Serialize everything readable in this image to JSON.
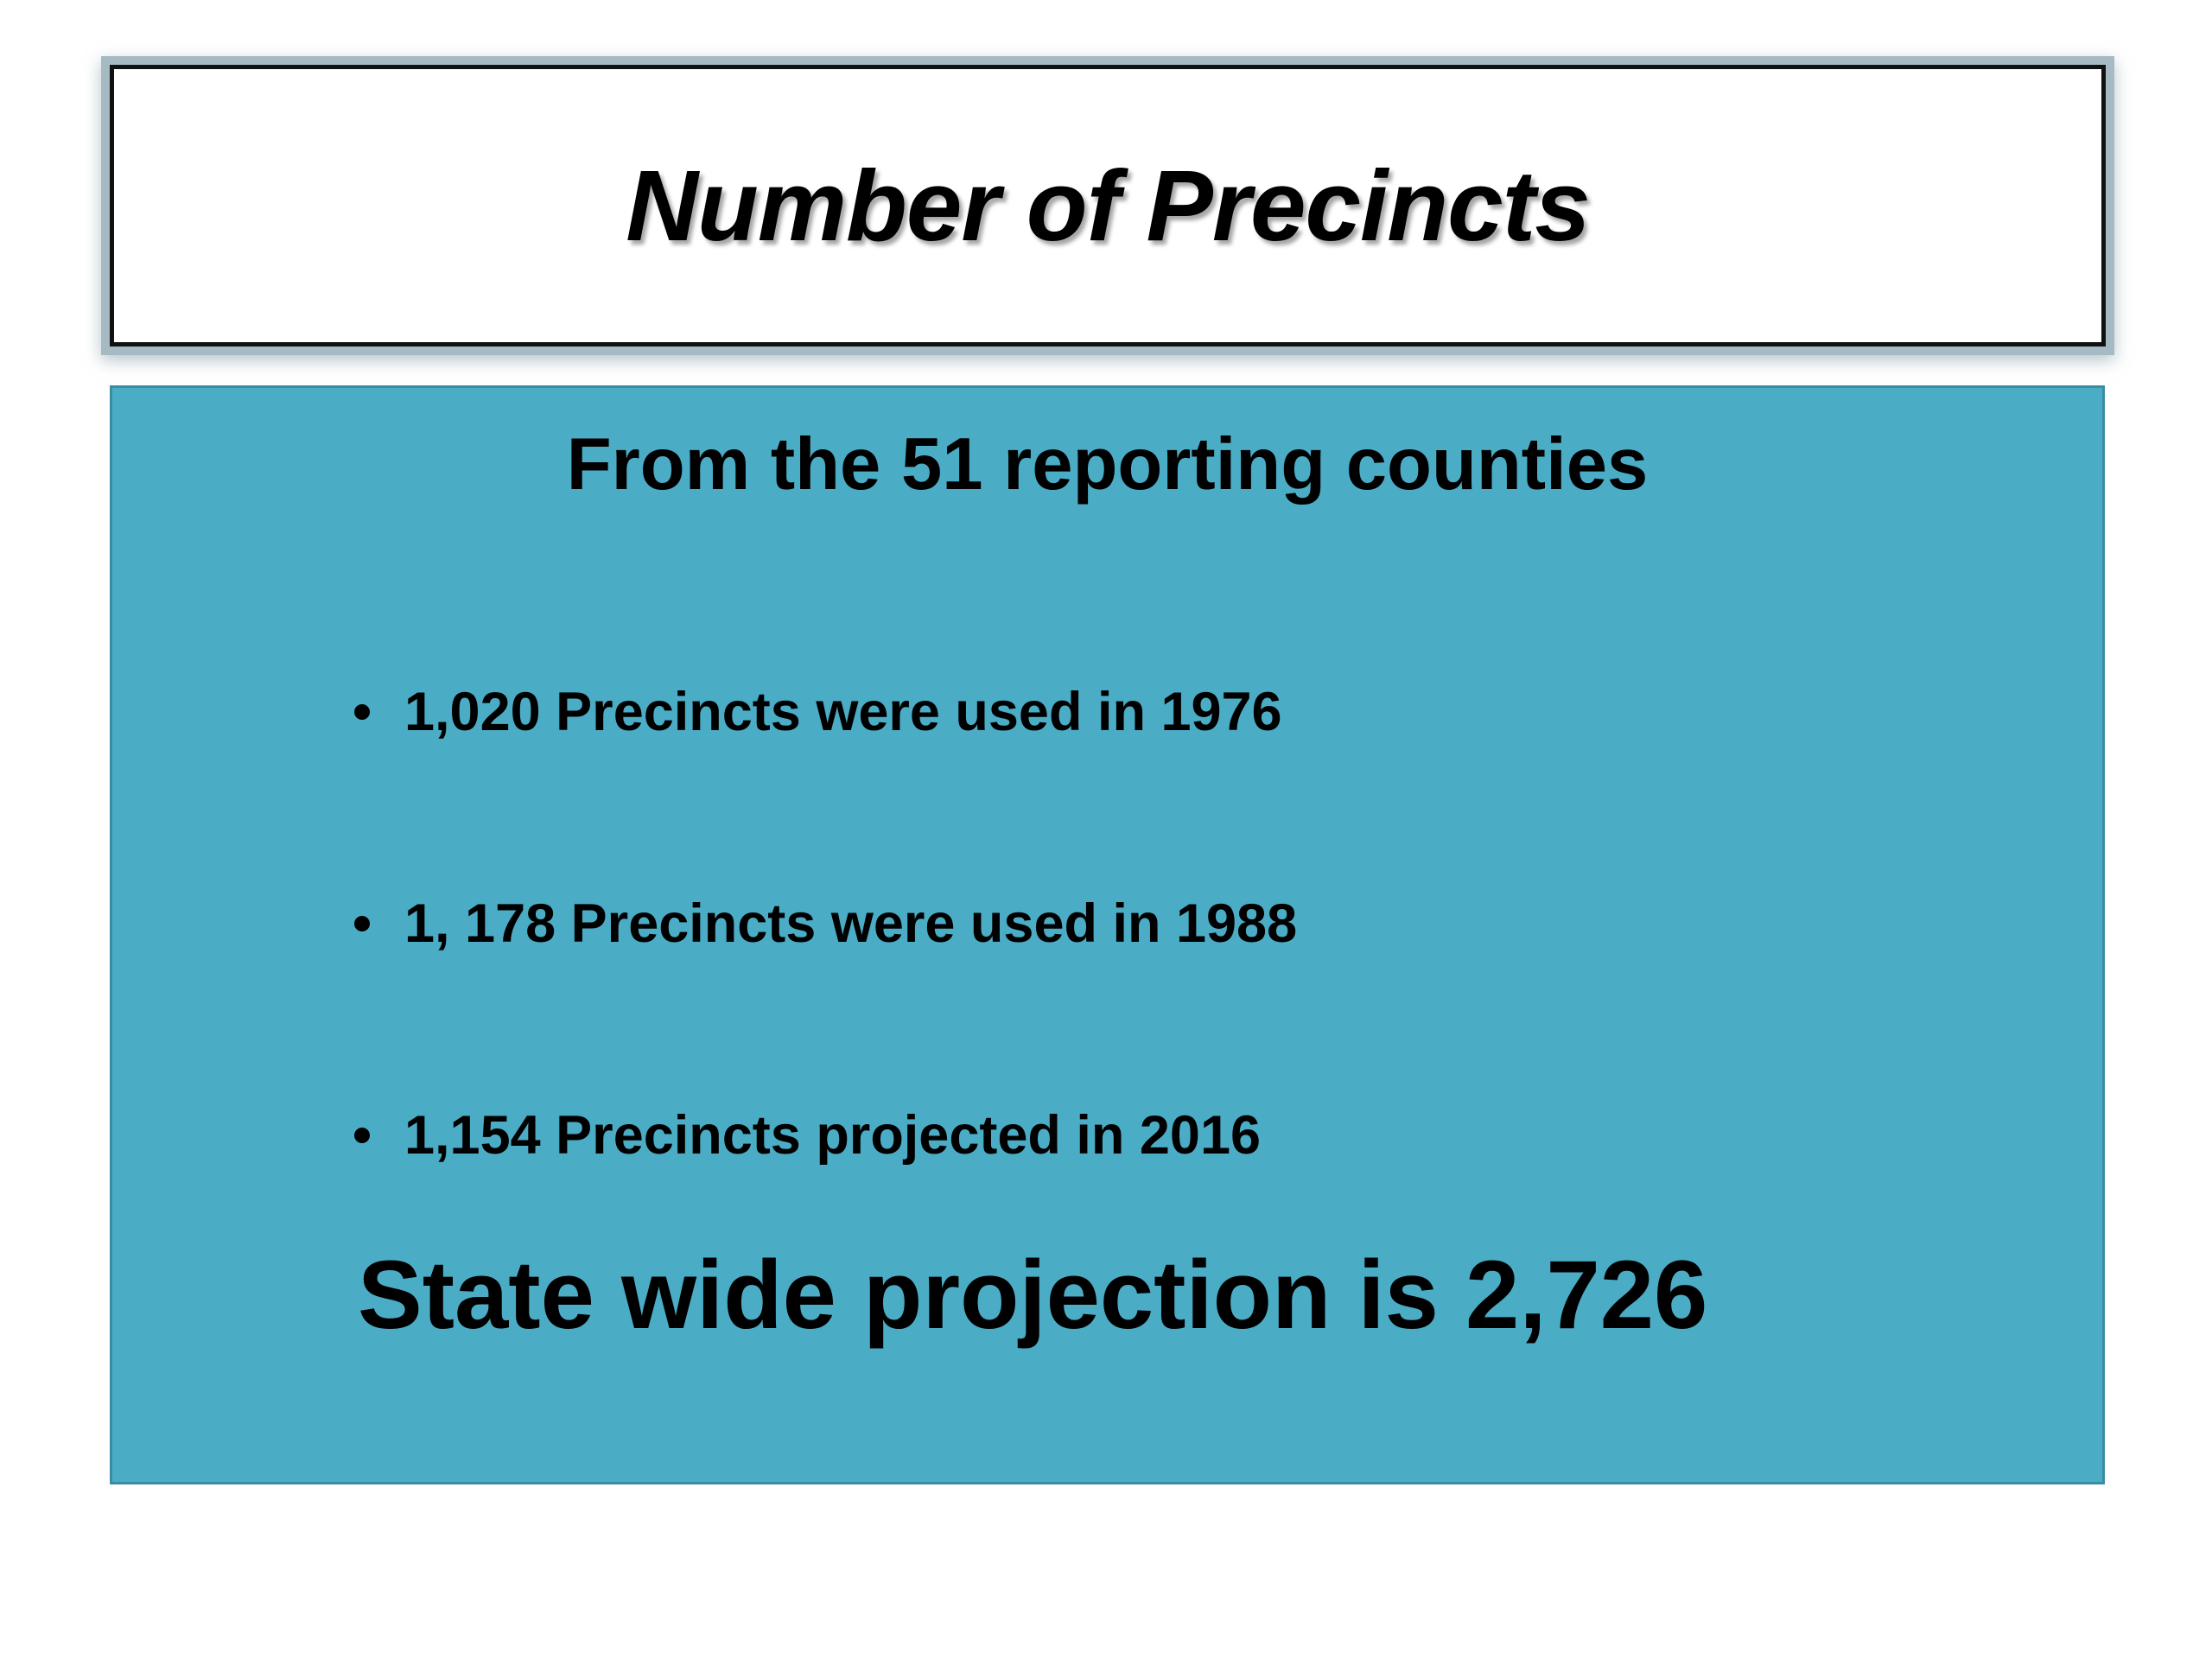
{
  "slide": {
    "title": "Number of Precincts",
    "subtitle": "From the 51 reporting counties",
    "bullets": [
      "1,020 Precincts were used in 1976",
      "1, 178 Precincts were used in 1988",
      "1,154 Precincts projected in 2016"
    ],
    "summary": "State wide projection is 2,726",
    "colors": {
      "content_background": "#4bacc6",
      "title_background": "#ffffff",
      "text": "#000000"
    }
  }
}
